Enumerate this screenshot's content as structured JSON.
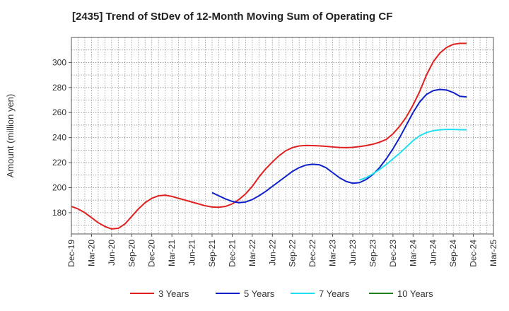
{
  "chart_data": {
    "type": "line",
    "title": "[2435]  Trend of StDev of 12-Month Moving Sum of Operating CF",
    "ylabel": "Amount (million yen)",
    "xlabel": "",
    "ylim": [
      163,
      320
    ],
    "yticks": [
      180,
      200,
      220,
      240,
      260,
      280,
      300
    ],
    "xlim": [
      "2019-12",
      "2025-03"
    ],
    "xticks": [
      "Dec-19",
      "Mar-20",
      "Jun-20",
      "Sep-20",
      "Dec-20",
      "Mar-21",
      "Jun-21",
      "Sep-21",
      "Dec-21",
      "Mar-22",
      "Jun-22",
      "Sep-22",
      "Dec-22",
      "Mar-23",
      "Jun-23",
      "Sep-23",
      "Dec-23",
      "Mar-24",
      "Jun-24",
      "Sep-24",
      "Dec-24",
      "Mar-25"
    ],
    "grid": true,
    "legend_position": "bottom",
    "series": [
      {
        "name": "3 Years",
        "color": "#e02020",
        "points": [
          [
            "2019-12",
            185
          ],
          [
            "2020-01",
            183
          ],
          [
            "2020-02",
            180
          ],
          [
            "2020-03",
            176
          ],
          [
            "2020-04",
            172
          ],
          [
            "2020-05",
            169
          ],
          [
            "2020-06",
            167
          ],
          [
            "2020-07",
            167.5
          ],
          [
            "2020-08",
            171
          ],
          [
            "2020-09",
            177
          ],
          [
            "2020-10",
            183
          ],
          [
            "2020-11",
            188
          ],
          [
            "2020-12",
            191.5
          ],
          [
            "2021-01",
            193.5
          ],
          [
            "2021-02",
            194
          ],
          [
            "2021-03",
            193
          ],
          [
            "2021-04",
            191.5
          ],
          [
            "2021-05",
            190
          ],
          [
            "2021-06",
            188.5
          ],
          [
            "2021-07",
            187
          ],
          [
            "2021-08",
            185.5
          ],
          [
            "2021-09",
            184.5
          ],
          [
            "2021-10",
            184.3
          ],
          [
            "2021-11",
            185
          ],
          [
            "2021-12",
            187
          ],
          [
            "2022-01",
            190.5
          ],
          [
            "2022-02",
            195
          ],
          [
            "2022-03",
            201
          ],
          [
            "2022-04",
            208.5
          ],
          [
            "2022-05",
            215
          ],
          [
            "2022-06",
            220.5
          ],
          [
            "2022-07",
            225.5
          ],
          [
            "2022-08",
            229.5
          ],
          [
            "2022-09",
            232
          ],
          [
            "2022-10",
            233.3
          ],
          [
            "2022-11",
            233.7
          ],
          [
            "2022-12",
            233.6
          ],
          [
            "2023-01",
            233.4
          ],
          [
            "2023-02",
            233
          ],
          [
            "2023-03",
            232.5
          ],
          [
            "2023-04",
            232.1
          ],
          [
            "2023-05",
            232
          ],
          [
            "2023-06",
            232.2
          ],
          [
            "2023-07",
            232.8
          ],
          [
            "2023-08",
            233.6
          ],
          [
            "2023-09",
            234.7
          ],
          [
            "2023-10",
            236.3
          ],
          [
            "2023-11",
            238.5
          ],
          [
            "2023-12",
            243
          ],
          [
            "2024-01",
            249
          ],
          [
            "2024-02",
            256.5
          ],
          [
            "2024-03",
            266
          ],
          [
            "2024-04",
            277
          ],
          [
            "2024-05",
            290
          ],
          [
            "2024-06",
            300.5
          ],
          [
            "2024-07",
            307.5
          ],
          [
            "2024-08",
            312
          ],
          [
            "2024-09",
            314.5
          ],
          [
            "2024-10",
            315.3
          ],
          [
            "2024-11",
            315.3
          ]
        ]
      },
      {
        "name": "5 Years",
        "color": "#1020c8",
        "points": [
          [
            "2021-09",
            196
          ],
          [
            "2021-10",
            193.5
          ],
          [
            "2021-11",
            191
          ],
          [
            "2021-12",
            189
          ],
          [
            "2022-01",
            188
          ],
          [
            "2022-02",
            188.5
          ],
          [
            "2022-03",
            190.5
          ],
          [
            "2022-04",
            193.5
          ],
          [
            "2022-05",
            197
          ],
          [
            "2022-06",
            201
          ],
          [
            "2022-07",
            205
          ],
          [
            "2022-08",
            209
          ],
          [
            "2022-09",
            213
          ],
          [
            "2022-10",
            216
          ],
          [
            "2022-11",
            218
          ],
          [
            "2022-12",
            218.7
          ],
          [
            "2023-01",
            218.3
          ],
          [
            "2023-02",
            216
          ],
          [
            "2023-03",
            212
          ],
          [
            "2023-04",
            208
          ],
          [
            "2023-05",
            205
          ],
          [
            "2023-06",
            203.5
          ],
          [
            "2023-07",
            204
          ],
          [
            "2023-08",
            206.5
          ],
          [
            "2023-09",
            210.5
          ],
          [
            "2023-10",
            216
          ],
          [
            "2023-11",
            223
          ],
          [
            "2023-12",
            231
          ],
          [
            "2024-01",
            240
          ],
          [
            "2024-02",
            250
          ],
          [
            "2024-03",
            260
          ],
          [
            "2024-04",
            268.5
          ],
          [
            "2024-05",
            274.5
          ],
          [
            "2024-06",
            277.5
          ],
          [
            "2024-07",
            278.5
          ],
          [
            "2024-08",
            278
          ],
          [
            "2024-09",
            276
          ],
          [
            "2024-10",
            273
          ],
          [
            "2024-11",
            272.5
          ]
        ]
      },
      {
        "name": "7 Years",
        "color": "#20e0f0",
        "points": [
          [
            "2023-07",
            206
          ],
          [
            "2023-08",
            208
          ],
          [
            "2023-09",
            211
          ],
          [
            "2023-10",
            214.5
          ],
          [
            "2023-11",
            218.5
          ],
          [
            "2023-12",
            223
          ],
          [
            "2024-01",
            227.5
          ],
          [
            "2024-02",
            232.5
          ],
          [
            "2024-03",
            237.5
          ],
          [
            "2024-04",
            241.5
          ],
          [
            "2024-05",
            244
          ],
          [
            "2024-06",
            245.5
          ],
          [
            "2024-07",
            246.2
          ],
          [
            "2024-08",
            246.5
          ],
          [
            "2024-09",
            246.5
          ],
          [
            "2024-10",
            246.3
          ],
          [
            "2024-11",
            246.2
          ]
        ]
      },
      {
        "name": "10 Years",
        "color": "#208020",
        "points": []
      }
    ]
  }
}
